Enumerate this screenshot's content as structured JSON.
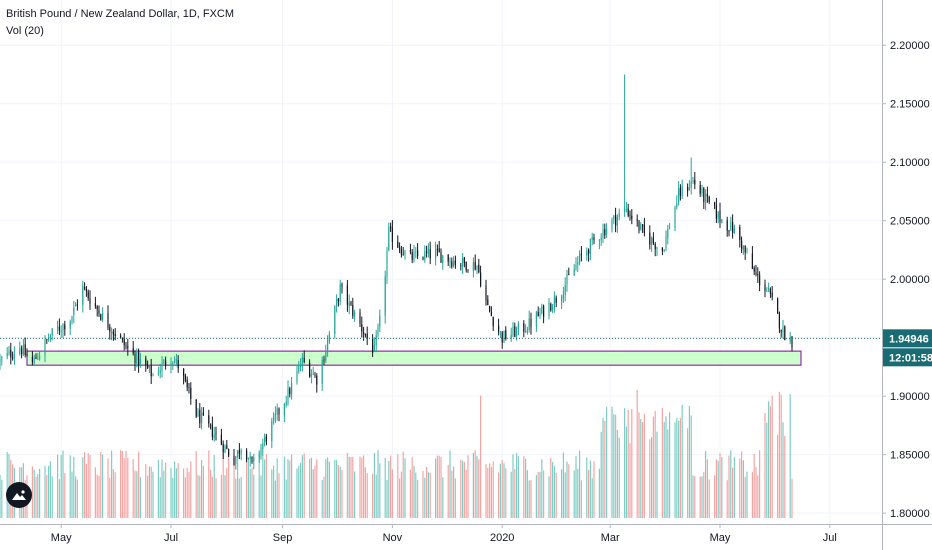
{
  "header": {
    "symbol": "British Pound / New Zealand Dollar, 1D, FXCM",
    "indicator": "Vol (20)"
  },
  "price_scale": {
    "ticks": [
      "2.20000",
      "2.15000",
      "2.10000",
      "2.05000",
      "2.00000",
      "1.95000",
      "1.90000",
      "1.85000",
      "1.80000"
    ],
    "last_price_label": "1.94946",
    "countdown_label": "12:01:58"
  },
  "time_axis": {
    "ticks": [
      "May",
      "Jul",
      "Sep",
      "Nov",
      "2020",
      "Mar",
      "May",
      "Jul"
    ]
  },
  "colors": {
    "up": "#26a69a",
    "down": "#131722",
    "vol_up": "#7fcdc4",
    "vol_down": "#f3a5a3",
    "zone_fill": "#ccffcc",
    "zone_border": "#9c27b0",
    "last_price": "#1a6c74"
  },
  "chart_data": {
    "type": "candlestick",
    "title": "British Pound / New Zealand Dollar, 1D, FXCM",
    "ylim": [
      1.795,
      2.225
    ],
    "last_price": 1.94946,
    "support_zone": {
      "from": 1.9265,
      "to": 1.9385,
      "start": "2019-04-12",
      "end": "2020-06-15"
    },
    "path": [
      [
        "2019-03-28",
        1.93
      ],
      [
        "2019-04-08",
        1.942
      ],
      [
        "2019-04-15",
        1.928
      ],
      [
        "2019-04-25",
        1.952
      ],
      [
        "2019-05-06",
        1.966
      ],
      [
        "2019-05-13",
        1.992
      ],
      [
        "2019-05-24",
        1.968
      ],
      [
        "2019-06-07",
        1.94
      ],
      [
        "2019-06-21",
        1.918
      ],
      [
        "2019-07-01",
        1.934
      ],
      [
        "2019-07-05",
        1.926
      ],
      [
        "2019-07-15",
        1.885
      ],
      [
        "2019-07-25",
        1.868
      ],
      [
        "2019-08-05",
        1.846
      ],
      [
        "2019-08-10",
        1.86
      ],
      [
        "2019-08-15",
        1.84
      ],
      [
        "2019-08-25",
        1.872
      ],
      [
        "2019-09-05",
        1.905
      ],
      [
        "2019-09-12",
        1.93
      ],
      [
        "2019-09-20",
        1.915
      ],
      [
        "2019-09-25",
        1.94
      ],
      [
        "2019-10-03",
        1.992
      ],
      [
        "2019-10-15",
        1.958
      ],
      [
        "2019-10-22",
        1.938
      ],
      [
        "2019-10-26",
        1.972
      ],
      [
        "2019-10-30",
        2.04
      ],
      [
        "2019-11-10",
        2.018
      ],
      [
        "2019-11-25",
        2.022
      ],
      [
        "2019-12-08",
        2.014
      ],
      [
        "2019-12-18",
        2.012
      ],
      [
        "2019-12-24",
        1.975
      ],
      [
        "2020-01-01",
        1.95
      ],
      [
        "2020-01-15",
        1.96
      ],
      [
        "2020-02-01",
        1.985
      ],
      [
        "2020-02-15",
        2.022
      ],
      [
        "2020-03-01",
        2.048
      ],
      [
        "2020-03-10",
        2.06
      ],
      [
        "2020-03-20",
        2.038
      ],
      [
        "2020-03-30",
        2.025
      ],
      [
        "2020-04-08",
        2.072
      ],
      [
        "2020-04-16",
        2.084
      ],
      [
        "2020-04-22",
        2.07
      ],
      [
        "2020-05-01",
        2.052
      ],
      [
        "2020-05-10",
        2.04
      ],
      [
        "2020-05-20",
        2.005
      ],
      [
        "2020-05-28",
        1.988
      ],
      [
        "2020-06-05",
        1.955
      ],
      [
        "2020-06-10",
        1.947
      ]
    ],
    "notable_wicks": [
      {
        "date": "2020-03-09",
        "high": 2.175
      },
      {
        "date": "2020-04-15",
        "high": 2.104
      }
    ],
    "volume": {
      "notable_bars": [
        {
          "date": "2019-12-20",
          "relative_height": 0.72
        },
        {
          "date": "2020-05-30",
          "relative_height": 0.72
        }
      ],
      "elevated_periods": [
        [
          "2020-02-25",
          "2020-04-15"
        ],
        [
          "2020-05-25",
          "2020-06-08"
        ]
      ]
    }
  }
}
